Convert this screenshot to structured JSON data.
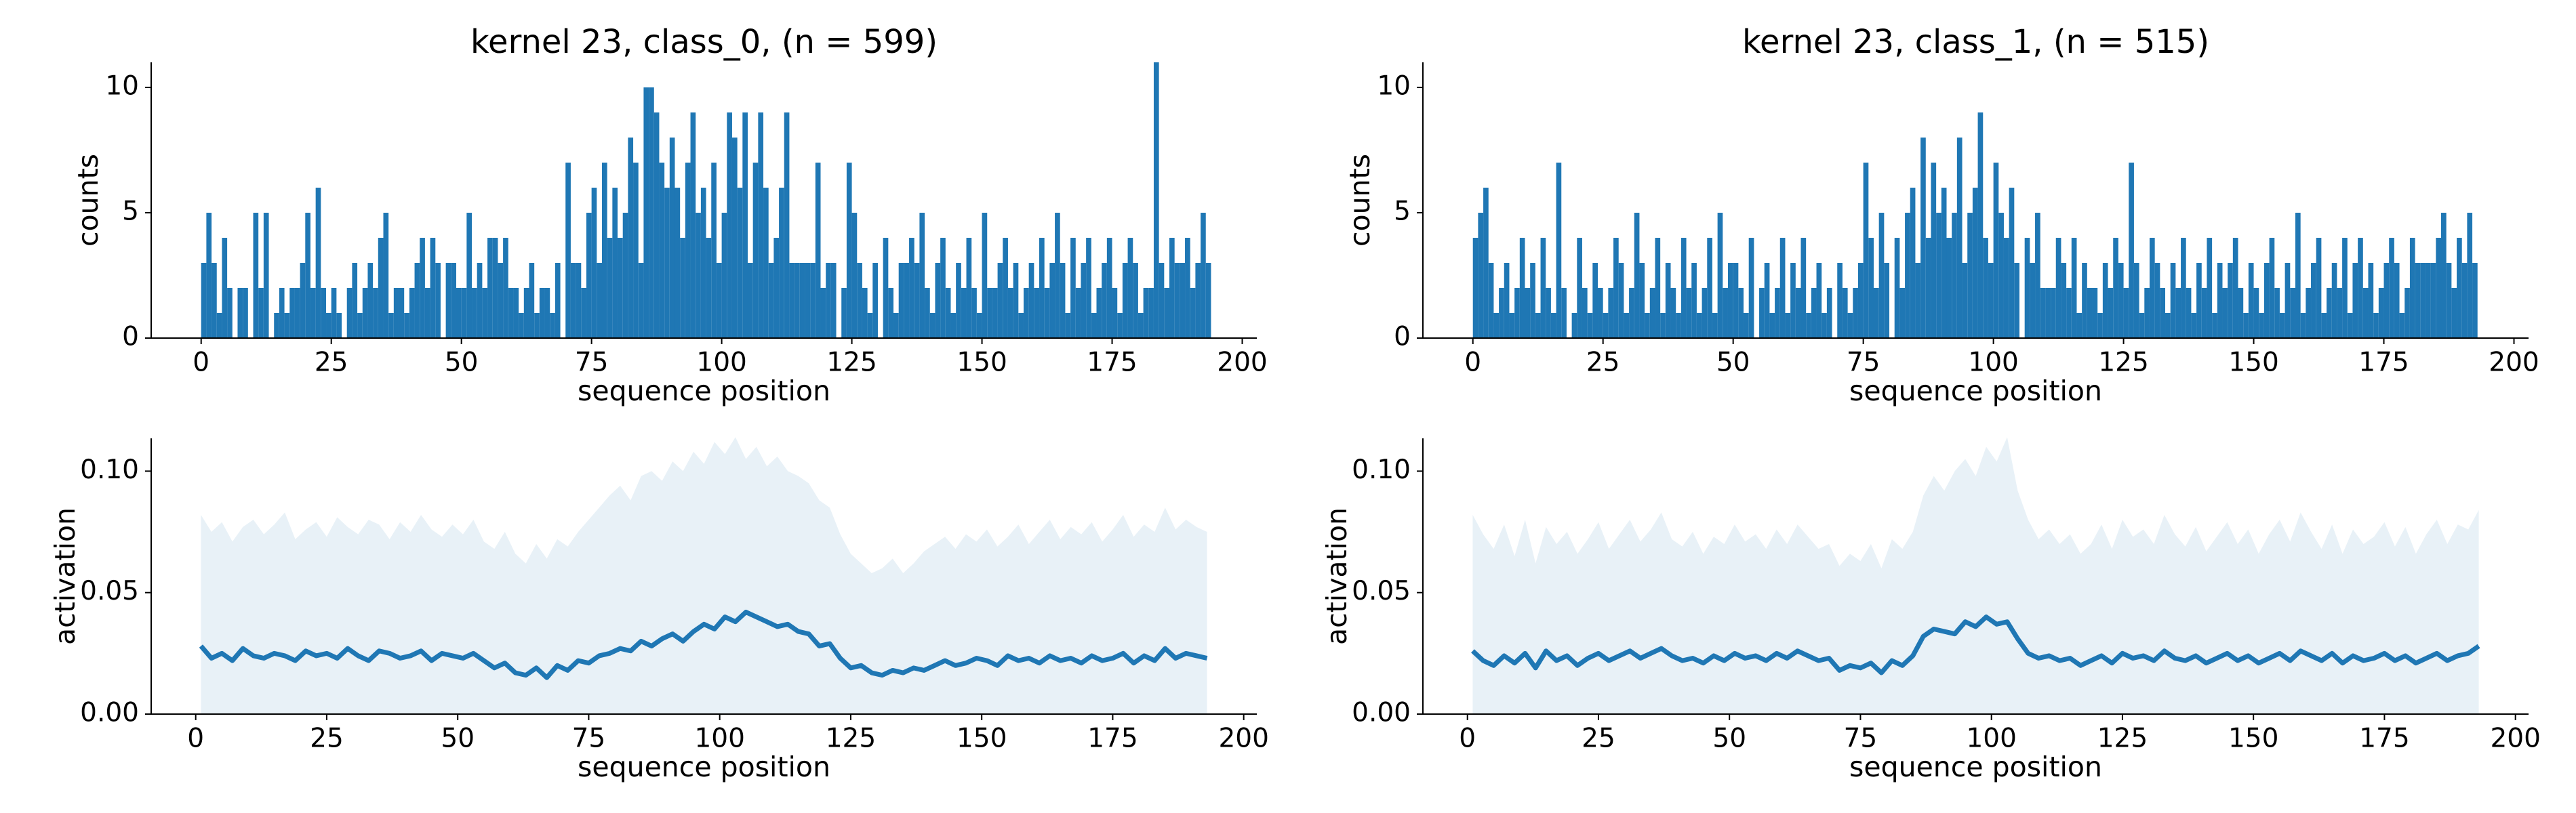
{
  "chart_data": [
    {
      "type": "histogram",
      "title": "kernel 23, class_0, (n = 599)",
      "xlabel": "sequence position",
      "ylabel": "counts",
      "color": "#1f77b4",
      "bins": [
        0,
        1,
        2,
        3,
        4,
        5,
        6,
        7,
        8,
        9,
        10,
        11,
        12,
        13,
        14,
        15,
        16,
        17,
        18,
        19,
        20,
        21,
        22,
        23,
        24,
        25,
        26,
        27,
        28,
        29,
        30,
        31,
        32,
        33,
        34,
        35,
        36,
        37,
        38,
        39,
        40,
        41,
        42,
        43,
        44,
        45,
        46,
        47,
        48,
        49,
        50,
        51,
        52,
        53,
        54,
        55,
        56,
        57,
        58,
        59,
        60,
        61,
        62,
        63,
        64,
        65,
        66,
        67,
        68,
        69,
        70,
        71,
        72,
        73,
        74,
        75,
        76,
        77,
        78,
        79,
        80,
        81,
        82,
        83,
        84,
        85,
        86,
        87,
        88,
        89,
        90,
        91,
        92,
        93,
        94,
        95,
        96,
        97,
        98,
        99,
        100,
        101,
        102,
        103,
        104,
        105,
        106,
        107,
        108,
        109,
        110,
        111,
        112,
        113,
        114,
        115,
        116,
        117,
        118,
        119,
        120,
        121,
        122,
        123,
        124,
        125,
        126,
        127,
        128,
        129,
        130,
        131,
        132,
        133,
        134,
        135,
        136,
        137,
        138,
        139,
        140,
        141,
        142,
        143,
        144,
        145,
        146,
        147,
        148,
        149,
        150,
        151,
        152,
        153,
        154,
        155,
        156,
        157,
        158,
        159,
        160,
        161,
        162,
        163,
        164,
        165,
        166,
        167,
        168,
        169,
        170,
        171,
        172,
        173,
        174,
        175,
        176,
        177,
        178,
        179,
        180,
        181,
        182,
        183,
        184,
        185,
        186,
        187,
        188,
        189,
        190,
        191,
        192,
        193,
        194
      ],
      "values": [
        3,
        5,
        3,
        1,
        4,
        2,
        0,
        2,
        2,
        0,
        5,
        2,
        5,
        0,
        1,
        2,
        1,
        2,
        2,
        3,
        5,
        2,
        6,
        2,
        1,
        2,
        1,
        0,
        2,
        3,
        1,
        2,
        3,
        2,
        4,
        5,
        1,
        2,
        2,
        1,
        2,
        3,
        4,
        2,
        4,
        3,
        0,
        3,
        3,
        2,
        2,
        5,
        2,
        3,
        2,
        4,
        4,
        3,
        4,
        2,
        2,
        1,
        2,
        3,
        1,
        2,
        2,
        1,
        3,
        0,
        7,
        3,
        3,
        2,
        5,
        6,
        3,
        7,
        4,
        6,
        4,
        5,
        8,
        7,
        3,
        10,
        10,
        9,
        7,
        6,
        8,
        6,
        4,
        7,
        9,
        5,
        6,
        4,
        7,
        3,
        5,
        9,
        8,
        6,
        9,
        3,
        7,
        9,
        6,
        3,
        4,
        6,
        9,
        3,
        3,
        3,
        3,
        3,
        7,
        2,
        3,
        3,
        0,
        2,
        7,
        5,
        3,
        2,
        1,
        3,
        0,
        4,
        2,
        1,
        3,
        3,
        4,
        3,
        5,
        2,
        1,
        3,
        4,
        2,
        1,
        3,
        2,
        4,
        2,
        1,
        5,
        2,
        2,
        3,
        4,
        2,
        3,
        1,
        2,
        3,
        2,
        4,
        2,
        3,
        5,
        3,
        1,
        4,
        2,
        3,
        4,
        1,
        2,
        3,
        4,
        2,
        1,
        3,
        4,
        3,
        1,
        2,
        2,
        11,
        3,
        2,
        4,
        3,
        3,
        4,
        2,
        3,
        5,
        3
      ],
      "xlim": [
        -9.6,
        202.8
      ],
      "ylim": [
        0,
        11
      ],
      "xticks": [
        0,
        25,
        50,
        75,
        100,
        125,
        150,
        175,
        200
      ],
      "yticks": [
        0,
        5,
        10
      ]
    },
    {
      "type": "histogram",
      "title": "kernel 23, class_1, (n = 515)",
      "xlabel": "sequence position",
      "ylabel": "counts",
      "color": "#1f77b4",
      "bins": [
        0,
        1,
        2,
        3,
        4,
        5,
        6,
        7,
        8,
        9,
        10,
        11,
        12,
        13,
        14,
        15,
        16,
        17,
        18,
        19,
        20,
        21,
        22,
        23,
        24,
        25,
        26,
        27,
        28,
        29,
        30,
        31,
        32,
        33,
        34,
        35,
        36,
        37,
        38,
        39,
        40,
        41,
        42,
        43,
        44,
        45,
        46,
        47,
        48,
        49,
        50,
        51,
        52,
        53,
        54,
        55,
        56,
        57,
        58,
        59,
        60,
        61,
        62,
        63,
        64,
        65,
        66,
        67,
        68,
        69,
        70,
        71,
        72,
        73,
        74,
        75,
        76,
        77,
        78,
        79,
        80,
        81,
        82,
        83,
        84,
        85,
        86,
        87,
        88,
        89,
        90,
        91,
        92,
        93,
        94,
        95,
        96,
        97,
        98,
        99,
        100,
        101,
        102,
        103,
        104,
        105,
        106,
        107,
        108,
        109,
        110,
        111,
        112,
        113,
        114,
        115,
        116,
        117,
        118,
        119,
        120,
        121,
        122,
        123,
        124,
        125,
        126,
        127,
        128,
        129,
        130,
        131,
        132,
        133,
        134,
        135,
        136,
        137,
        138,
        139,
        140,
        141,
        142,
        143,
        144,
        145,
        146,
        147,
        148,
        149,
        150,
        151,
        152,
        153,
        154,
        155,
        156,
        157,
        158,
        159,
        160,
        161,
        162,
        163,
        164,
        165,
        166,
        167,
        168,
        169,
        170,
        171,
        172,
        173,
        174,
        175,
        176,
        177,
        178,
        179,
        180,
        181,
        182,
        183,
        184,
        185,
        186,
        187,
        188,
        189,
        190,
        191,
        192,
        193,
        194
      ],
      "values": [
        4,
        5,
        6,
        3,
        1,
        2,
        3,
        1,
        2,
        4,
        2,
        3,
        1,
        4,
        2,
        1,
        7,
        2,
        0,
        1,
        4,
        2,
        1,
        3,
        2,
        1,
        2,
        4,
        3,
        1,
        2,
        5,
        3,
        1,
        2,
        4,
        1,
        3,
        2,
        1,
        4,
        2,
        3,
        1,
        2,
        4,
        1,
        5,
        2,
        3,
        3,
        2,
        1,
        4,
        0,
        2,
        3,
        1,
        2,
        4,
        1,
        3,
        2,
        4,
        1,
        2,
        3,
        1,
        2,
        0,
        3,
        2,
        1,
        2,
        3,
        7,
        4,
        2,
        5,
        3,
        0,
        4,
        2,
        5,
        6,
        3,
        8,
        4,
        7,
        5,
        6,
        4,
        5,
        8,
        3,
        5,
        6,
        9,
        4,
        3,
        7,
        5,
        4,
        6,
        3,
        0,
        4,
        3,
        5,
        2,
        2,
        2,
        4,
        3,
        2,
        4,
        1,
        3,
        2,
        2,
        1,
        3,
        2,
        4,
        3,
        2,
        7,
        3,
        1,
        2,
        4,
        3,
        2,
        1,
        3,
        2,
        4,
        2,
        1,
        3,
        2,
        4,
        1,
        3,
        2,
        3,
        4,
        2,
        1,
        3,
        2,
        1,
        3,
        4,
        2,
        1,
        3,
        2,
        5,
        1,
        2,
        3,
        4,
        1,
        2,
        3,
        2,
        4,
        1,
        3,
        4,
        2,
        3,
        1,
        2,
        3,
        4,
        3,
        1,
        2,
        4,
        3,
        3,
        3,
        3,
        4,
        5,
        3,
        2,
        4,
        3,
        5,
        3,
        0
      ],
      "xlim": [
        -9.6,
        202.8
      ],
      "ylim": [
        0,
        11
      ],
      "xticks": [
        0,
        25,
        50,
        75,
        100,
        125,
        150,
        175,
        200
      ],
      "yticks": [
        0,
        5,
        10
      ]
    },
    {
      "type": "line",
      "xlabel": "sequence position",
      "ylabel": "activation",
      "color": "#1f77b4",
      "x": [
        1,
        3,
        5,
        7,
        9,
        11,
        13,
        15,
        17,
        19,
        21,
        23,
        25,
        27,
        29,
        31,
        33,
        35,
        37,
        39,
        41,
        43,
        45,
        47,
        49,
        51,
        53,
        55,
        57,
        59,
        61,
        63,
        65,
        67,
        69,
        71,
        73,
        75,
        77,
        79,
        81,
        83,
        85,
        87,
        89,
        91,
        93,
        95,
        97,
        99,
        101,
        103,
        105,
        107,
        109,
        111,
        113,
        115,
        117,
        119,
        121,
        123,
        125,
        127,
        129,
        131,
        133,
        135,
        137,
        139,
        141,
        143,
        145,
        147,
        149,
        151,
        153,
        155,
        157,
        159,
        161,
        163,
        165,
        167,
        169,
        171,
        173,
        175,
        177,
        179,
        181,
        183,
        185,
        187,
        189,
        191,
        193
      ],
      "values": [
        0.028,
        0.023,
        0.025,
        0.022,
        0.027,
        0.024,
        0.023,
        0.025,
        0.024,
        0.022,
        0.026,
        0.024,
        0.025,
        0.023,
        0.027,
        0.024,
        0.022,
        0.026,
        0.025,
        0.023,
        0.024,
        0.026,
        0.022,
        0.025,
        0.024,
        0.023,
        0.025,
        0.022,
        0.019,
        0.021,
        0.017,
        0.016,
        0.019,
        0.015,
        0.02,
        0.018,
        0.022,
        0.021,
        0.024,
        0.025,
        0.027,
        0.026,
        0.03,
        0.028,
        0.031,
        0.033,
        0.03,
        0.034,
        0.037,
        0.035,
        0.04,
        0.038,
        0.042,
        0.04,
        0.038,
        0.036,
        0.037,
        0.034,
        0.033,
        0.028,
        0.029,
        0.023,
        0.019,
        0.02,
        0.017,
        0.016,
        0.018,
        0.017,
        0.019,
        0.018,
        0.02,
        0.022,
        0.02,
        0.021,
        0.023,
        0.022,
        0.02,
        0.024,
        0.022,
        0.023,
        0.021,
        0.024,
        0.022,
        0.023,
        0.021,
        0.024,
        0.022,
        0.023,
        0.025,
        0.021,
        0.024,
        0.022,
        0.027,
        0.023,
        0.025,
        0.024,
        0.023
      ],
      "band_upper": [
        0.082,
        0.075,
        0.079,
        0.071,
        0.077,
        0.08,
        0.074,
        0.078,
        0.083,
        0.072,
        0.076,
        0.079,
        0.073,
        0.081,
        0.077,
        0.074,
        0.08,
        0.078,
        0.072,
        0.079,
        0.075,
        0.082,
        0.076,
        0.073,
        0.078,
        0.074,
        0.08,
        0.071,
        0.068,
        0.075,
        0.066,
        0.062,
        0.07,
        0.064,
        0.072,
        0.069,
        0.075,
        0.08,
        0.085,
        0.09,
        0.094,
        0.088,
        0.098,
        0.1,
        0.096,
        0.104,
        0.1,
        0.108,
        0.103,
        0.112,
        0.107,
        0.114,
        0.105,
        0.11,
        0.102,
        0.106,
        0.1,
        0.098,
        0.095,
        0.088,
        0.085,
        0.074,
        0.066,
        0.062,
        0.058,
        0.06,
        0.064,
        0.058,
        0.062,
        0.067,
        0.07,
        0.073,
        0.068,
        0.074,
        0.071,
        0.076,
        0.069,
        0.073,
        0.078,
        0.07,
        0.075,
        0.08,
        0.072,
        0.077,
        0.074,
        0.079,
        0.071,
        0.076,
        0.082,
        0.073,
        0.078,
        0.075,
        0.085,
        0.076,
        0.08,
        0.077,
        0.075
      ],
      "xlim": [
        -8.5,
        202.5
      ],
      "ylim": [
        0,
        0.1135
      ],
      "xticks": [
        0,
        25,
        50,
        75,
        100,
        125,
        150,
        175,
        200
      ],
      "yticks": [
        {
          "value": 0,
          "label": "0.00"
        },
        {
          "value": 0.05,
          "label": "0.05"
        },
        {
          "value": 0.1,
          "label": "0.10"
        }
      ]
    },
    {
      "type": "line",
      "xlabel": "sequence position",
      "ylabel": "activation",
      "color": "#1f77b4",
      "x": [
        1,
        3,
        5,
        7,
        9,
        11,
        13,
        15,
        17,
        19,
        21,
        23,
        25,
        27,
        29,
        31,
        33,
        35,
        37,
        39,
        41,
        43,
        45,
        47,
        49,
        51,
        53,
        55,
        57,
        59,
        61,
        63,
        65,
        67,
        69,
        71,
        73,
        75,
        77,
        79,
        81,
        83,
        85,
        87,
        89,
        91,
        93,
        95,
        97,
        99,
        101,
        103,
        105,
        107,
        109,
        111,
        113,
        115,
        117,
        119,
        121,
        123,
        125,
        127,
        129,
        131,
        133,
        135,
        137,
        139,
        141,
        143,
        145,
        147,
        149,
        151,
        153,
        155,
        157,
        159,
        161,
        163,
        165,
        167,
        169,
        171,
        173,
        175,
        177,
        179,
        181,
        183,
        185,
        187,
        189,
        191,
        193
      ],
      "values": [
        0.026,
        0.022,
        0.02,
        0.024,
        0.021,
        0.025,
        0.019,
        0.026,
        0.022,
        0.024,
        0.02,
        0.023,
        0.025,
        0.022,
        0.024,
        0.026,
        0.023,
        0.025,
        0.027,
        0.024,
        0.022,
        0.023,
        0.021,
        0.024,
        0.022,
        0.025,
        0.023,
        0.024,
        0.022,
        0.025,
        0.023,
        0.026,
        0.024,
        0.022,
        0.023,
        0.018,
        0.02,
        0.019,
        0.021,
        0.017,
        0.022,
        0.02,
        0.024,
        0.032,
        0.035,
        0.034,
        0.033,
        0.038,
        0.036,
        0.04,
        0.037,
        0.038,
        0.031,
        0.025,
        0.023,
        0.024,
        0.022,
        0.023,
        0.02,
        0.022,
        0.024,
        0.021,
        0.025,
        0.023,
        0.024,
        0.022,
        0.026,
        0.023,
        0.022,
        0.024,
        0.021,
        0.023,
        0.025,
        0.022,
        0.024,
        0.021,
        0.023,
        0.025,
        0.022,
        0.026,
        0.024,
        0.022,
        0.025,
        0.021,
        0.024,
        0.022,
        0.023,
        0.025,
        0.022,
        0.024,
        0.021,
        0.023,
        0.025,
        0.022,
        0.024,
        0.025,
        0.028
      ],
      "band_upper": [
        0.082,
        0.074,
        0.068,
        0.078,
        0.065,
        0.08,
        0.062,
        0.077,
        0.07,
        0.075,
        0.066,
        0.072,
        0.079,
        0.068,
        0.074,
        0.08,
        0.071,
        0.076,
        0.083,
        0.072,
        0.069,
        0.075,
        0.066,
        0.073,
        0.07,
        0.078,
        0.071,
        0.074,
        0.068,
        0.076,
        0.07,
        0.078,
        0.073,
        0.068,
        0.07,
        0.061,
        0.066,
        0.063,
        0.07,
        0.06,
        0.072,
        0.068,
        0.075,
        0.09,
        0.098,
        0.092,
        0.1,
        0.105,
        0.098,
        0.11,
        0.104,
        0.114,
        0.092,
        0.08,
        0.072,
        0.076,
        0.07,
        0.074,
        0.066,
        0.07,
        0.078,
        0.068,
        0.08,
        0.073,
        0.076,
        0.07,
        0.082,
        0.074,
        0.069,
        0.077,
        0.067,
        0.073,
        0.079,
        0.07,
        0.076,
        0.066,
        0.074,
        0.08,
        0.071,
        0.083,
        0.075,
        0.068,
        0.078,
        0.066,
        0.076,
        0.07,
        0.073,
        0.079,
        0.069,
        0.077,
        0.066,
        0.074,
        0.08,
        0.07,
        0.078,
        0.076,
        0.084
      ],
      "xlim": [
        -8.5,
        202.5
      ],
      "ylim": [
        0,
        0.1135
      ],
      "xticks": [
        0,
        25,
        50,
        75,
        100,
        125,
        150,
        175,
        200
      ],
      "yticks": [
        {
          "value": 0,
          "label": "0.00"
        },
        {
          "value": 0.05,
          "label": "0.05"
        },
        {
          "value": 0.1,
          "label": "0.10"
        }
      ]
    }
  ]
}
